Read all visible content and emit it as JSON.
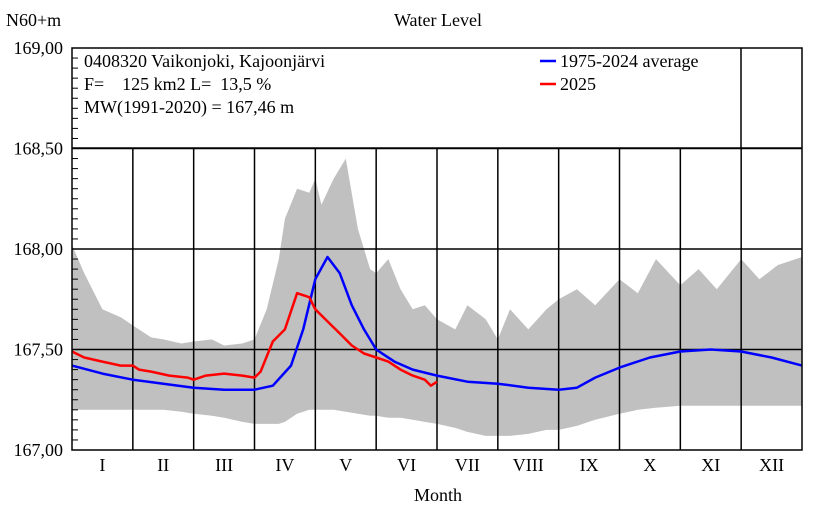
{
  "chart_data": {
    "type": "line",
    "title": "Water Level",
    "ylabel": "N60+m",
    "xlabel": "Month",
    "ylim": [
      167.0,
      169.0
    ],
    "yticks": [
      167.0,
      167.5,
      168.0,
      168.5,
      169.0
    ],
    "ytick_labels": [
      "167,00",
      "167,50",
      "168,00",
      "168,50",
      "169,00"
    ],
    "months": [
      "I",
      "II",
      "III",
      "IV",
      "V",
      "VI",
      "VII",
      "VIII",
      "IX",
      "X",
      "XI",
      "XII"
    ],
    "info_lines": [
      "0408320 Vaikonjoki, Kajoonjärvi",
      "F=    125 km2 L=  13,5 %",
      "MW(1991-2020) = 167,46 m"
    ],
    "legend": [
      {
        "name": "1975-2024 average",
        "color": "#0000ff"
      },
      {
        "name": "2025",
        "color": "#ff0000"
      }
    ],
    "range_band": {
      "color": "#c0c0c0",
      "x": [
        0.0,
        0.2,
        0.5,
        0.8,
        1.0,
        1.3,
        1.5,
        1.8,
        2.0,
        2.3,
        2.5,
        2.8,
        3.0,
        3.2,
        3.4,
        3.5,
        3.7,
        3.9,
        4.0,
        4.1,
        4.3,
        4.5,
        4.7,
        4.9,
        5.0,
        5.2,
        5.4,
        5.6,
        5.8,
        6.0,
        6.3,
        6.5,
        6.8,
        7.0,
        7.2,
        7.5,
        7.8,
        8.0,
        8.3,
        8.6,
        9.0,
        9.3,
        9.6,
        10.0,
        10.3,
        10.6,
        11.0,
        11.3,
        11.6,
        12.0
      ],
      "upper": [
        168.02,
        167.88,
        167.7,
        167.66,
        167.62,
        167.56,
        167.55,
        167.53,
        167.54,
        167.55,
        167.52,
        167.53,
        167.55,
        167.7,
        167.95,
        168.15,
        168.3,
        168.28,
        168.35,
        168.22,
        168.35,
        168.45,
        168.1,
        167.9,
        167.88,
        167.95,
        167.8,
        167.7,
        167.72,
        167.65,
        167.6,
        167.72,
        167.65,
        167.55,
        167.7,
        167.6,
        167.7,
        167.75,
        167.8,
        167.72,
        167.85,
        167.78,
        167.95,
        167.82,
        167.9,
        167.8,
        167.95,
        167.85,
        167.92,
        167.96
      ],
      "lower": [
        167.2,
        167.2,
        167.2,
        167.2,
        167.2,
        167.2,
        167.2,
        167.19,
        167.18,
        167.17,
        167.16,
        167.14,
        167.13,
        167.13,
        167.13,
        167.14,
        167.18,
        167.2,
        167.2,
        167.2,
        167.2,
        167.19,
        167.18,
        167.17,
        167.17,
        167.16,
        167.16,
        167.15,
        167.14,
        167.13,
        167.11,
        167.09,
        167.07,
        167.07,
        167.07,
        167.08,
        167.1,
        167.1,
        167.12,
        167.15,
        167.18,
        167.2,
        167.21,
        167.22,
        167.22,
        167.22,
        167.22,
        167.22,
        167.22,
        167.22
      ]
    },
    "series": [
      {
        "name": "1975-2024 average",
        "color": "#0000ff",
        "x": [
          0.0,
          0.5,
          1.0,
          1.5,
          2.0,
          2.5,
          3.0,
          3.3,
          3.6,
          3.8,
          4.0,
          4.2,
          4.4,
          4.6,
          4.8,
          5.0,
          5.3,
          5.6,
          6.0,
          6.5,
          7.0,
          7.5,
          8.0,
          8.3,
          8.6,
          9.0,
          9.5,
          10.0,
          10.5,
          11.0,
          11.5,
          12.0
        ],
        "y": [
          167.42,
          167.38,
          167.35,
          167.33,
          167.31,
          167.3,
          167.3,
          167.32,
          167.42,
          167.6,
          167.85,
          167.96,
          167.88,
          167.72,
          167.6,
          167.5,
          167.44,
          167.4,
          167.37,
          167.34,
          167.33,
          167.31,
          167.3,
          167.31,
          167.36,
          167.41,
          167.46,
          167.49,
          167.5,
          167.49,
          167.46,
          167.42
        ]
      },
      {
        "name": "2025",
        "color": "#ff0000",
        "x": [
          0.0,
          0.2,
          0.5,
          0.8,
          1.0,
          1.1,
          1.3,
          1.6,
          1.9,
          2.0,
          2.2,
          2.5,
          2.8,
          3.0,
          3.1,
          3.3,
          3.5,
          3.7,
          3.9,
          4.0,
          4.2,
          4.4,
          4.6,
          4.8,
          5.0,
          5.2,
          5.4,
          5.6,
          5.8,
          5.9,
          6.0
        ],
        "y": [
          167.49,
          167.46,
          167.44,
          167.42,
          167.42,
          167.4,
          167.39,
          167.37,
          167.36,
          167.35,
          167.37,
          167.38,
          167.37,
          167.36,
          167.39,
          167.54,
          167.6,
          167.78,
          167.76,
          167.7,
          167.64,
          167.58,
          167.52,
          167.48,
          167.46,
          167.44,
          167.4,
          167.37,
          167.35,
          167.32,
          167.34
        ]
      }
    ]
  }
}
